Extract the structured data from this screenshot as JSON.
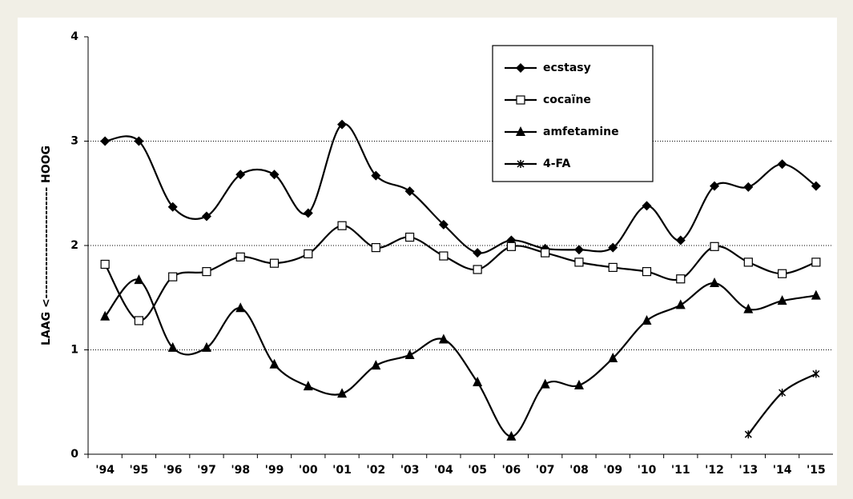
{
  "chart_data": {
    "type": "line",
    "y_label": "LAAG <------------------------ HOOG",
    "categories": [
      "'94",
      "'95",
      "'96",
      "'97",
      "'98",
      "'99",
      "'00",
      "'01",
      "'02",
      "'03",
      "'04",
      "'05",
      "'06",
      "'07",
      "'08",
      "'09",
      "'10",
      "'11",
      "'12",
      "'13",
      "'14",
      "'15"
    ],
    "series": [
      {
        "name": "ecstasy",
        "color": "#000000",
        "marker": "diamond",
        "values": [
          3.0,
          3.0,
          2.37,
          2.28,
          2.68,
          2.68,
          2.31,
          3.16,
          2.67,
          2.52,
          2.2,
          1.93,
          2.05,
          1.97,
          1.96,
          1.98,
          2.38,
          2.05,
          2.57,
          2.56,
          2.78,
          2.57
        ]
      },
      {
        "name": "cocaïne",
        "color": "#000000",
        "marker": "square",
        "values": [
          1.82,
          1.28,
          1.7,
          1.75,
          1.89,
          1.83,
          1.92,
          2.19,
          1.98,
          2.08,
          1.9,
          1.77,
          1.99,
          1.93,
          1.84,
          1.79,
          1.75,
          1.68,
          1.99,
          1.84,
          1.73,
          1.84
        ]
      },
      {
        "name": "amfetamine",
        "color": "#000000",
        "marker": "triangle",
        "values": [
          1.32,
          1.67,
          1.02,
          1.02,
          1.4,
          0.86,
          0.65,
          0.58,
          0.85,
          0.95,
          1.1,
          0.69,
          0.17,
          0.67,
          0.66,
          0.92,
          1.28,
          1.43,
          1.64,
          1.39,
          1.47,
          1.52
        ]
      },
      {
        "name": "4-FA",
        "color": "#000000",
        "marker": "asterisk",
        "values": [
          null,
          null,
          null,
          null,
          null,
          null,
          null,
          null,
          null,
          null,
          null,
          null,
          null,
          null,
          null,
          null,
          null,
          null,
          null,
          0.19,
          0.59,
          0.77
        ]
      }
    ],
    "ylim": [
      0,
      4
    ],
    "yticks": [
      0,
      1,
      2,
      3,
      4
    ],
    "grid": true,
    "smooth": true
  }
}
